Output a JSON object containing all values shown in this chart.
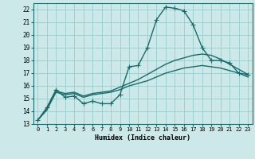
{
  "xlabel": "Humidex (Indice chaleur)",
  "xlim": [
    -0.5,
    23.5
  ],
  "ylim": [
    13,
    22.5
  ],
  "yticks": [
    13,
    14,
    15,
    16,
    17,
    18,
    19,
    20,
    21,
    22
  ],
  "xticks": [
    0,
    1,
    2,
    3,
    4,
    5,
    6,
    7,
    8,
    9,
    10,
    11,
    12,
    13,
    14,
    15,
    16,
    17,
    18,
    19,
    20,
    21,
    22,
    23
  ],
  "xtick_labels": [
    "0",
    "1",
    "2",
    "3",
    "4",
    "5",
    "6",
    "7",
    "8",
    "9",
    "10",
    "11",
    "12",
    "13",
    "14",
    "15",
    "16",
    "17",
    "18",
    "19",
    "20",
    "21",
    "22",
    "23"
  ],
  "bg_color": "#cce8e8",
  "grid_color": "#99cccc",
  "line_color": "#1a6b6b",
  "line_width": 1.0,
  "marker_size": 4,
  "series1_x": [
    0,
    1,
    2,
    3,
    4,
    5,
    6,
    7,
    8,
    9,
    10,
    11,
    12,
    13,
    14,
    15,
    16,
    17,
    18,
    19,
    20,
    21,
    22,
    23
  ],
  "series1_y": [
    13.3,
    14.3,
    15.7,
    15.1,
    15.2,
    14.6,
    14.8,
    14.6,
    14.6,
    15.3,
    17.5,
    17.6,
    19.0,
    21.2,
    22.2,
    22.1,
    21.9,
    20.8,
    19.0,
    18.0,
    18.0,
    17.8,
    17.0,
    16.9
  ],
  "series2_x": [
    0,
    1,
    2,
    3,
    4,
    5,
    6,
    7,
    8,
    9,
    10,
    11,
    12,
    13,
    14,
    15,
    16,
    17,
    18,
    19,
    20,
    21,
    22,
    23
  ],
  "series2_y": [
    13.3,
    14.2,
    15.6,
    15.4,
    15.5,
    15.2,
    15.4,
    15.5,
    15.6,
    15.9,
    16.2,
    16.5,
    16.9,
    17.3,
    17.7,
    18.0,
    18.2,
    18.4,
    18.5,
    18.4,
    18.1,
    17.7,
    17.3,
    16.9
  ],
  "series3_x": [
    0,
    1,
    2,
    3,
    4,
    5,
    6,
    7,
    8,
    9,
    10,
    11,
    12,
    13,
    14,
    15,
    16,
    17,
    18,
    19,
    20,
    21,
    22,
    23
  ],
  "series3_y": [
    13.3,
    14.1,
    15.5,
    15.3,
    15.4,
    15.1,
    15.3,
    15.4,
    15.5,
    15.7,
    16.0,
    16.2,
    16.4,
    16.7,
    17.0,
    17.2,
    17.4,
    17.5,
    17.6,
    17.5,
    17.4,
    17.2,
    17.0,
    16.7
  ]
}
